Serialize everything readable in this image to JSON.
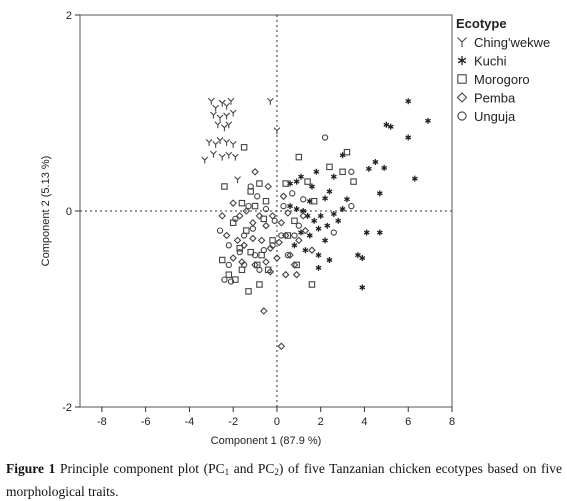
{
  "chart_data": {
    "type": "scatter",
    "xlabel": "Component 1  (87.9 %)",
    "ylabel": "Component 2  (5.13 %)",
    "xlim": [
      -9,
      8
    ],
    "ylim": [
      -2,
      2
    ],
    "xticks": [
      -8,
      -6,
      -4,
      -2,
      0,
      2,
      4,
      6,
      8
    ],
    "yticks": [
      -2,
      0,
      2
    ],
    "reference_lines": {
      "x": 0,
      "y": 0,
      "style": "dotted"
    },
    "grid": false,
    "legend": {
      "title": "Ecotype",
      "placement": "top-right"
    },
    "series": [
      {
        "name": "Ching'wekwe",
        "marker": "Y",
        "points": [
          [
            -3.0,
            1.12
          ],
          [
            -2.8,
            1.05
          ],
          [
            -2.5,
            1.1
          ],
          [
            -2.3,
            1.07
          ],
          [
            -2.1,
            1.12
          ],
          [
            -2.9,
            0.98
          ],
          [
            -2.6,
            0.95
          ],
          [
            -2.3,
            0.97
          ],
          [
            -2.0,
            1.0
          ],
          [
            -2.7,
            0.88
          ],
          [
            -2.4,
            0.85
          ],
          [
            -2.2,
            0.88
          ],
          [
            -3.1,
            0.7
          ],
          [
            -2.8,
            0.68
          ],
          [
            -2.6,
            0.72
          ],
          [
            -2.3,
            0.7
          ],
          [
            -2.0,
            0.68
          ],
          [
            -2.9,
            0.58
          ],
          [
            -2.5,
            0.55
          ],
          [
            -2.2,
            0.57
          ],
          [
            -1.9,
            0.55
          ],
          [
            -3.3,
            0.52
          ],
          [
            -0.3,
            1.12
          ],
          [
            0.0,
            0.82
          ],
          [
            -1.8,
            0.32
          ]
        ]
      },
      {
        "name": "Kuchi",
        "marker": "asterisk",
        "points": [
          [
            6.0,
            1.12
          ],
          [
            6.9,
            0.92
          ],
          [
            5.0,
            0.88
          ],
          [
            5.2,
            0.86
          ],
          [
            6.0,
            0.75
          ],
          [
            4.5,
            0.5
          ],
          [
            4.9,
            0.44
          ],
          [
            4.2,
            0.43
          ],
          [
            6.3,
            0.33
          ],
          [
            4.7,
            0.18
          ],
          [
            3.0,
            0.57
          ],
          [
            2.6,
            0.35
          ],
          [
            2.4,
            0.2
          ],
          [
            2.2,
            0.13
          ],
          [
            1.8,
            0.4
          ],
          [
            1.6,
            0.25
          ],
          [
            1.5,
            0.1
          ],
          [
            1.1,
            0.35
          ],
          [
            0.9,
            0.3
          ],
          [
            0.6,
            0.28
          ],
          [
            0.6,
            0.05
          ],
          [
            0.9,
            0.02
          ],
          [
            1.2,
            0.0
          ],
          [
            1.4,
            -0.05
          ],
          [
            1.7,
            -0.1
          ],
          [
            2.0,
            -0.05
          ],
          [
            2.3,
            -0.15
          ],
          [
            2.6,
            -0.03
          ],
          [
            2.8,
            -0.1
          ],
          [
            3.0,
            0.02
          ],
          [
            1.1,
            -0.22
          ],
          [
            1.5,
            -0.25
          ],
          [
            1.9,
            -0.18
          ],
          [
            2.2,
            -0.3
          ],
          [
            0.8,
            -0.35
          ],
          [
            1.3,
            -0.4
          ],
          [
            1.9,
            -0.45
          ],
          [
            2.4,
            -0.5
          ],
          [
            4.1,
            -0.22
          ],
          [
            4.7,
            -0.22
          ],
          [
            3.7,
            -0.45
          ],
          [
            3.9,
            -0.48
          ],
          [
            3.9,
            -0.78
          ],
          [
            1.9,
            -0.58
          ],
          [
            3.2,
            0.12
          ]
        ]
      },
      {
        "name": "Morogoro",
        "marker": "square",
        "points": [
          [
            -1.5,
            0.65
          ],
          [
            -2.4,
            0.25
          ],
          [
            -1.2,
            0.2
          ],
          [
            -0.8,
            0.28
          ],
          [
            -1.6,
            0.08
          ],
          [
            -1.0,
            0.05
          ],
          [
            -0.5,
            0.1
          ],
          [
            -2.0,
            -0.12
          ],
          [
            -1.4,
            -0.2
          ],
          [
            -0.6,
            -0.08
          ],
          [
            -0.2,
            -0.3
          ],
          [
            -1.7,
            -0.38
          ],
          [
            -1.2,
            -0.42
          ],
          [
            -0.7,
            -0.45
          ],
          [
            -2.5,
            -0.5
          ],
          [
            -1.6,
            -0.6
          ],
          [
            -0.9,
            -0.55
          ],
          [
            -1.9,
            -0.7
          ],
          [
            -1.3,
            -0.82
          ],
          [
            -0.4,
            -0.6
          ],
          [
            -0.8,
            -0.75
          ],
          [
            -2.2,
            -0.65
          ],
          [
            1.0,
            0.55
          ],
          [
            1.4,
            0.3
          ],
          [
            2.4,
            0.45
          ],
          [
            3.2,
            0.6
          ],
          [
            3.0,
            0.4
          ],
          [
            1.7,
            0.1
          ],
          [
            0.4,
            0.28
          ],
          [
            0.8,
            -0.1
          ],
          [
            1.6,
            -0.75
          ],
          [
            0.9,
            -0.55
          ],
          [
            3.5,
            0.3
          ],
          [
            0.5,
            -0.25
          ]
        ]
      },
      {
        "name": "Pemba",
        "marker": "diamond",
        "points": [
          [
            -2.0,
            0.08
          ],
          [
            -1.7,
            -0.05
          ],
          [
            -1.4,
            0.0
          ],
          [
            -1.1,
            -0.12
          ],
          [
            -0.8,
            -0.05
          ],
          [
            -0.5,
            -0.15
          ],
          [
            -0.2,
            -0.05
          ],
          [
            0.2,
            -0.12
          ],
          [
            0.5,
            -0.02
          ],
          [
            -2.3,
            -0.25
          ],
          [
            -1.8,
            -0.3
          ],
          [
            -1.5,
            -0.35
          ],
          [
            -1.1,
            -0.28
          ],
          [
            -0.7,
            -0.3
          ],
          [
            -0.3,
            -0.38
          ],
          [
            0.1,
            -0.32
          ],
          [
            0.4,
            -0.25
          ],
          [
            -2.0,
            -0.48
          ],
          [
            -1.6,
            -0.52
          ],
          [
            -1.0,
            -0.55
          ],
          [
            -0.5,
            -0.52
          ],
          [
            0.0,
            -0.48
          ],
          [
            0.6,
            -0.45
          ],
          [
            1.0,
            -0.3
          ],
          [
            1.3,
            -0.2
          ],
          [
            -0.3,
            -0.62
          ],
          [
            0.4,
            -0.65
          ],
          [
            0.8,
            -0.55
          ],
          [
            -0.6,
            -1.02
          ],
          [
            0.2,
            -1.38
          ],
          [
            0.9,
            -0.65
          ],
          [
            1.6,
            -0.4
          ],
          [
            -0.4,
            0.25
          ],
          [
            0.3,
            0.15
          ],
          [
            -1.0,
            0.4
          ],
          [
            -2.5,
            -0.05
          ],
          [
            1.2,
            -0.05
          ]
        ]
      },
      {
        "name": "Unguja",
        "marker": "circle",
        "points": [
          [
            -2.4,
            -0.7
          ],
          [
            -2.1,
            -0.72
          ],
          [
            -1.7,
            -0.42
          ],
          [
            -2.2,
            -0.35
          ],
          [
            -1.5,
            -0.25
          ],
          [
            -1.1,
            -0.18
          ],
          [
            -2.6,
            -0.2
          ],
          [
            -1.9,
            -0.08
          ],
          [
            -1.3,
            0.05
          ],
          [
            -0.9,
            0.15
          ],
          [
            -0.5,
            0.02
          ],
          [
            -0.1,
            -0.1
          ],
          [
            0.3,
            0.05
          ],
          [
            0.7,
            0.18
          ],
          [
            1.2,
            0.12
          ],
          [
            2.2,
            0.75
          ],
          [
            3.4,
            0.4
          ],
          [
            3.4,
            0.05
          ],
          [
            2.6,
            -0.22
          ],
          [
            -1.2,
            0.25
          ],
          [
            -0.2,
            -0.35
          ],
          [
            0.2,
            -0.25
          ],
          [
            0.8,
            -0.25
          ],
          [
            -0.6,
            -0.4
          ],
          [
            1.0,
            -0.15
          ],
          [
            -1.5,
            -0.55
          ],
          [
            0.5,
            -0.45
          ],
          [
            -0.8,
            -0.6
          ],
          [
            -2.2,
            -0.55
          ],
          [
            -1.0,
            -0.45
          ]
        ]
      }
    ]
  },
  "caption": {
    "label": "Figure 1",
    "text_pre": " Principle component plot (PC",
    "sub1": "1",
    "text_mid": " and PC",
    "sub2": "2",
    "text_post": ") of five Tanzanian chicken ecotypes based on five morphological traits."
  }
}
